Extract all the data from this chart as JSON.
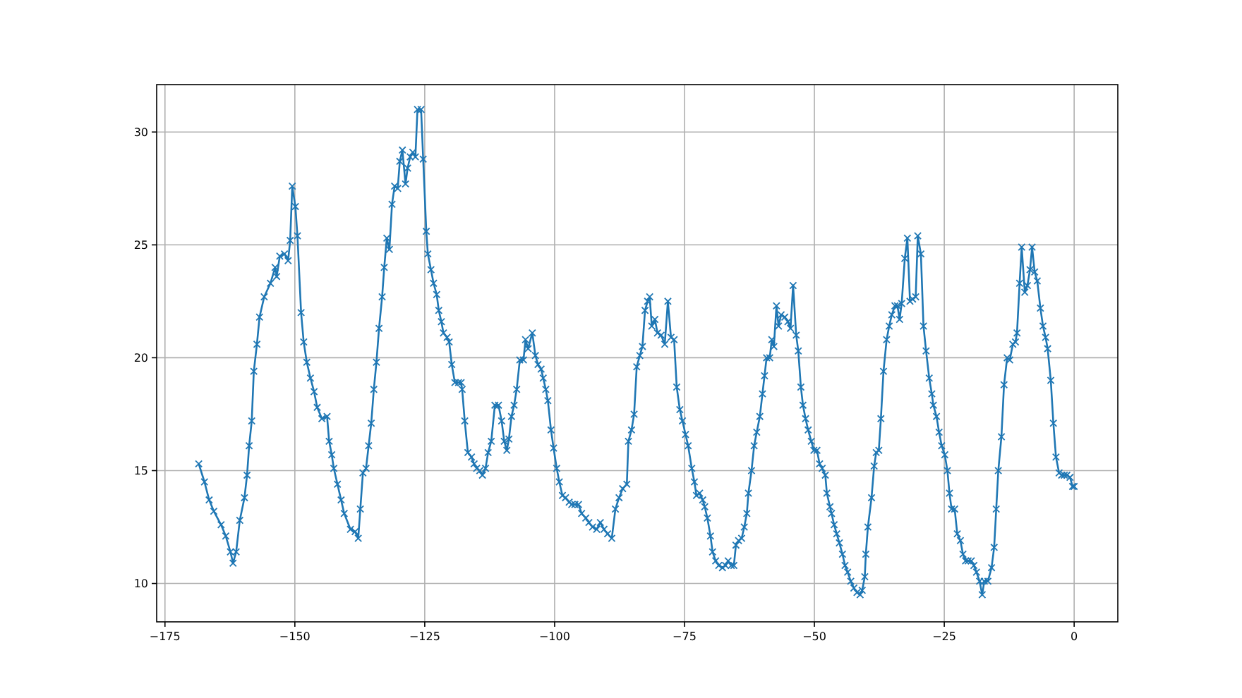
{
  "chart_data": {
    "type": "line",
    "marker": "cross",
    "line_style": "solid",
    "grid": true,
    "xlim": [
      -176.6,
      8.4
    ],
    "ylim": [
      8.3,
      32.1
    ],
    "xticks": [
      -175,
      -150,
      -125,
      -100,
      -75,
      -50,
      -25,
      0
    ],
    "yticks": [
      10,
      15,
      20,
      25,
      30
    ],
    "series": [
      {
        "color": "#1f77b4",
        "x": [
          -168.5,
          -167.4,
          -166.5,
          -165.6,
          -164.2,
          -163.3,
          -162.4,
          -161.9,
          -161.3,
          -160.6,
          -159.7,
          -159.2,
          -158.8,
          -158.3,
          -157.9,
          -157.3,
          -156.8,
          -155.9,
          -154.7,
          -153.8,
          -153.5,
          -152.9,
          -152.0,
          -151.3,
          -150.9,
          -150.5,
          -149.9,
          -149.5,
          -148.8,
          -148.3,
          -147.7,
          -147.0,
          -146.3,
          -145.7,
          -144.8,
          -143.8,
          -143.4,
          -142.9,
          -142.5,
          -141.8,
          -141.1,
          -140.5,
          -139.3,
          -138.4,
          -137.8,
          -137.4,
          -136.9,
          -136.3,
          -135.8,
          -135.3,
          -134.8,
          -134.3,
          -133.8,
          -133.2,
          -132.8,
          -132.3,
          -131.8,
          -131.3,
          -130.8,
          -130.2,
          -129.8,
          -129.3,
          -128.7,
          -128.3,
          -127.8,
          -127.3,
          -126.8,
          -126.4,
          -125.7,
          -125.3,
          -124.7,
          -124.4,
          -123.8,
          -123.3,
          -122.7,
          -122.3,
          -121.8,
          -121.4,
          -120.7,
          -120.3,
          -119.8,
          -119.2,
          -118.5,
          -118.0,
          -117.8,
          -117.3,
          -116.7,
          -116.0,
          -115.5,
          -115.0,
          -114.4,
          -113.9,
          -113.3,
          -112.8,
          -112.2,
          -111.5,
          -110.8,
          -110.2,
          -109.7,
          -109.2,
          -108.8,
          -108.3,
          -107.8,
          -107.3,
          -106.7,
          -106.0,
          -105.6,
          -105.1,
          -104.3,
          -103.7,
          -103.2,
          -102.6,
          -102.2,
          -101.7,
          -101.3,
          -100.7,
          -100.2,
          -99.6,
          -99.1,
          -98.5,
          -97.9,
          -97.2,
          -96.7,
          -96.1,
          -95.4,
          -94.8,
          -94.0,
          -93.4,
          -92.7,
          -91.9,
          -91.2,
          -90.5,
          -89.8,
          -89.0,
          -88.3,
          -87.6,
          -86.9,
          -86.1,
          -85.8,
          -85.2,
          -84.7,
          -84.2,
          -83.6,
          -83.1,
          -82.6,
          -82.1,
          -81.7,
          -81.3,
          -80.7,
          -80.2,
          -79.5,
          -78.8,
          -78.2,
          -77.6,
          -77.0,
          -76.5,
          -75.9,
          -75.4,
          -74.8,
          -74.3,
          -73.6,
          -73.1,
          -72.7,
          -72.1,
          -71.5,
          -71.1,
          -70.6,
          -70.0,
          -69.6,
          -69.0,
          -68.4,
          -67.7,
          -67.1,
          -66.6,
          -66.0,
          -65.5,
          -65.1,
          -64.6,
          -64.0,
          -63.5,
          -63.0,
          -62.7,
          -62.1,
          -61.6,
          -61.1,
          -60.5,
          -60.0,
          -59.6,
          -59.2,
          -58.6,
          -58.2,
          -57.8,
          -57.3,
          -56.9,
          -56.4,
          -55.7,
          -55.1,
          -54.6,
          -54.1,
          -53.5,
          -53.1,
          -52.6,
          -52.2,
          -51.7,
          -51.2,
          -50.6,
          -50.1,
          -49.5,
          -49.0,
          -48.5,
          -47.9,
          -47.6,
          -47.0,
          -46.7,
          -46.2,
          -45.7,
          -45.2,
          -44.6,
          -44.1,
          -43.6,
          -43.0,
          -42.4,
          -41.8,
          -41.2,
          -40.8,
          -40.3,
          -40.1,
          -39.7,
          -39.0,
          -38.5,
          -38.1,
          -37.6,
          -37.2,
          -36.7,
          -36.1,
          -35.6,
          -35.1,
          -34.5,
          -34.0,
          -33.6,
          -33.2,
          -32.6,
          -32.1,
          -31.6,
          -31.1,
          -30.5,
          -30.1,
          -29.5,
          -29.0,
          -28.5,
          -27.9,
          -27.4,
          -27.1,
          -26.5,
          -26.0,
          -25.5,
          -24.9,
          -24.4,
          -24.0,
          -23.6,
          -23.0,
          -22.5,
          -21.9,
          -21.4,
          -20.9,
          -20.4,
          -19.8,
          -19.3,
          -18.8,
          -18.2,
          -17.7,
          -17.3,
          -16.6,
          -15.9,
          -15.4,
          -15.0,
          -14.6,
          -14.0,
          -13.5,
          -12.9,
          -12.4,
          -11.8,
          -11.3,
          -11.0,
          -10.5,
          -10.1,
          -9.5,
          -9.0,
          -8.5,
          -8.1,
          -7.6,
          -7.1,
          -6.5,
          -6.0,
          -5.5,
          -5.1,
          -4.5,
          -4.0,
          -3.5,
          -2.9,
          -2.4,
          -1.9,
          -1.4,
          -0.8,
          -0.3,
          0.0
        ],
        "values": [
          15.3,
          14.5,
          13.7,
          13.2,
          12.6,
          12.1,
          11.4,
          10.9,
          11.4,
          12.8,
          13.8,
          14.8,
          16.1,
          17.2,
          19.4,
          20.6,
          21.8,
          22.7,
          23.3,
          24.0,
          23.6,
          24.5,
          24.6,
          24.3,
          25.2,
          27.6,
          26.7,
          25.4,
          22.0,
          20.7,
          19.8,
          19.1,
          18.5,
          17.8,
          17.3,
          17.4,
          16.3,
          15.7,
          15.1,
          14.4,
          13.7,
          13.1,
          12.4,
          12.3,
          12.0,
          13.3,
          14.9,
          15.1,
          16.1,
          17.1,
          18.6,
          19.8,
          21.3,
          22.7,
          24.0,
          25.3,
          24.8,
          26.8,
          27.6,
          27.5,
          28.7,
          29.2,
          27.7,
          28.4,
          28.9,
          29.1,
          28.9,
          31.0,
          31.0,
          28.8,
          25.6,
          24.6,
          23.9,
          23.3,
          22.8,
          22.1,
          21.6,
          21.1,
          20.9,
          20.7,
          19.7,
          18.9,
          18.9,
          18.9,
          18.6,
          17.2,
          15.8,
          15.6,
          15.3,
          15.1,
          15.0,
          14.8,
          15.1,
          15.8,
          16.3,
          17.9,
          17.9,
          17.2,
          16.3,
          15.9,
          16.4,
          17.4,
          17.9,
          18.6,
          19.9,
          19.9,
          20.8,
          20.4,
          21.1,
          20.1,
          19.7,
          19.5,
          19.1,
          18.6,
          18.1,
          16.8,
          16.0,
          15.1,
          14.5,
          13.9,
          13.8,
          13.6,
          13.5,
          13.5,
          13.5,
          13.1,
          12.9,
          12.7,
          12.5,
          12.4,
          12.7,
          12.4,
          12.2,
          12.0,
          13.3,
          13.8,
          14.2,
          14.4,
          16.3,
          16.8,
          17.5,
          19.6,
          20.1,
          20.5,
          22.1,
          22.5,
          22.7,
          21.4,
          21.7,
          21.1,
          21.0,
          20.6,
          22.5,
          20.9,
          20.8,
          18.7,
          17.7,
          17.2,
          16.6,
          16.1,
          15.1,
          14.5,
          13.9,
          14.0,
          13.7,
          13.4,
          12.9,
          12.1,
          11.4,
          11.0,
          10.8,
          10.7,
          10.8,
          11.0,
          10.8,
          10.8,
          11.7,
          11.9,
          12.0,
          12.5,
          13.1,
          14.0,
          15.0,
          16.1,
          16.7,
          17.4,
          18.4,
          19.2,
          20.0,
          20.0,
          20.8,
          20.5,
          22.3,
          21.4,
          21.9,
          21.8,
          21.6,
          21.3,
          23.2,
          21.0,
          20.3,
          18.7,
          17.9,
          17.3,
          16.8,
          16.3,
          15.9,
          15.9,
          15.3,
          15.1,
          14.8,
          14.0,
          13.4,
          13.1,
          12.6,
          12.2,
          11.8,
          11.3,
          10.8,
          10.5,
          10.1,
          9.8,
          9.6,
          9.5,
          9.7,
          10.3,
          11.3,
          12.5,
          13.8,
          15.2,
          15.8,
          15.9,
          17.3,
          19.4,
          20.8,
          21.4,
          21.9,
          22.3,
          22.3,
          21.7,
          22.4,
          24.4,
          25.3,
          22.5,
          22.6,
          22.7,
          25.4,
          24.6,
          21.4,
          20.3,
          19.1,
          18.4,
          17.9,
          17.4,
          16.7,
          16.1,
          15.7,
          15.0,
          14.0,
          13.3,
          13.3,
          12.2,
          11.9,
          11.3,
          11.0,
          11.0,
          11.0,
          10.8,
          10.5,
          10.1,
          9.5,
          10.1,
          10.1,
          10.7,
          11.6,
          13.3,
          15.0,
          16.5,
          18.8,
          20.0,
          19.9,
          20.6,
          20.7,
          21.1,
          23.3,
          24.9,
          22.9,
          23.2,
          23.9,
          24.9,
          23.8,
          23.4,
          22.2,
          21.4,
          20.9,
          20.4,
          19.0,
          17.1,
          15.6,
          14.9,
          14.8,
          14.8,
          14.8,
          14.7,
          14.3,
          14.3
        ]
      }
    ]
  }
}
